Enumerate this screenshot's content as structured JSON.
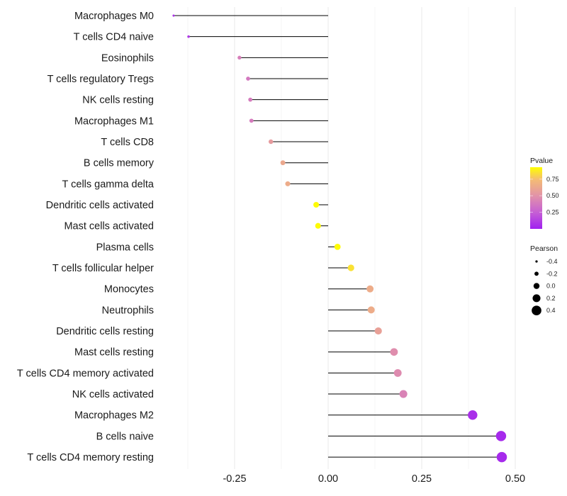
{
  "chart_data": {
    "type": "lollipop",
    "title": "",
    "xlabel": "",
    "ylabel": "",
    "xlim": [
      -0.435,
      0.52
    ],
    "x_ticks": [
      -0.25,
      0.0,
      0.25,
      0.5
    ],
    "x_tick_labels": [
      "-0.25",
      "0.00",
      "0.25",
      "0.50"
    ],
    "x_minor_grid": [
      -0.375,
      -0.125,
      0.125,
      0.375
    ],
    "grid": true,
    "baseline": 0,
    "categories": [
      "Macrophages M0",
      "T cells CD4 naive",
      "Eosinophils",
      "T cells regulatory  Tregs ",
      "NK cells resting",
      "Macrophages M1",
      "T cells CD8",
      "B cells memory",
      "T cells gamma delta",
      "Dendritic cells activated",
      "Mast cells activated",
      "Plasma cells",
      "T cells follicular helper",
      "Monocytes",
      "Neutrophils",
      "Dendritic cells resting",
      "Mast cells resting",
      "T cells CD4 memory activated",
      "NK cells activated",
      "Macrophages M2",
      "B cells naive",
      "T cells CD4 memory resting"
    ],
    "series": [
      {
        "name": "Pearson",
        "values": [
          -0.413,
          -0.373,
          -0.237,
          -0.214,
          -0.208,
          -0.205,
          -0.153,
          -0.121,
          -0.108,
          -0.032,
          -0.027,
          0.025,
          0.061,
          0.112,
          0.115,
          0.134,
          0.176,
          0.186,
          0.201,
          0.386,
          0.462,
          0.464
        ]
      },
      {
        "name": "Pvalue",
        "values": [
          0.08,
          0.1,
          0.4,
          0.37,
          0.38,
          0.38,
          0.55,
          0.63,
          0.65,
          0.92,
          0.92,
          0.92,
          0.85,
          0.65,
          0.65,
          0.58,
          0.47,
          0.46,
          0.42,
          0.06,
          0.04,
          0.04
        ]
      }
    ],
    "legend": {
      "placement": "right",
      "color": {
        "title": "Pvalue",
        "range": [
          0.0,
          0.93
        ],
        "ticks": [
          0.25,
          0.5,
          0.75
        ],
        "tick_labels": [
          "0.25",
          "0.50",
          "0.75"
        ],
        "low_color": "#a020f0",
        "mid_color": "#e293a8",
        "high_color": "#ffff00"
      },
      "size": {
        "title": "Pearson",
        "values": [
          -0.4,
          -0.2,
          0.0,
          0.2,
          0.4
        ],
        "labels": [
          "-0.4",
          "-0.2",
          "0.0",
          "0.2",
          "0.4"
        ],
        "color": "#000000"
      }
    },
    "colors": {
      "stem": "#000000",
      "grid": "#ebebeb"
    }
  }
}
